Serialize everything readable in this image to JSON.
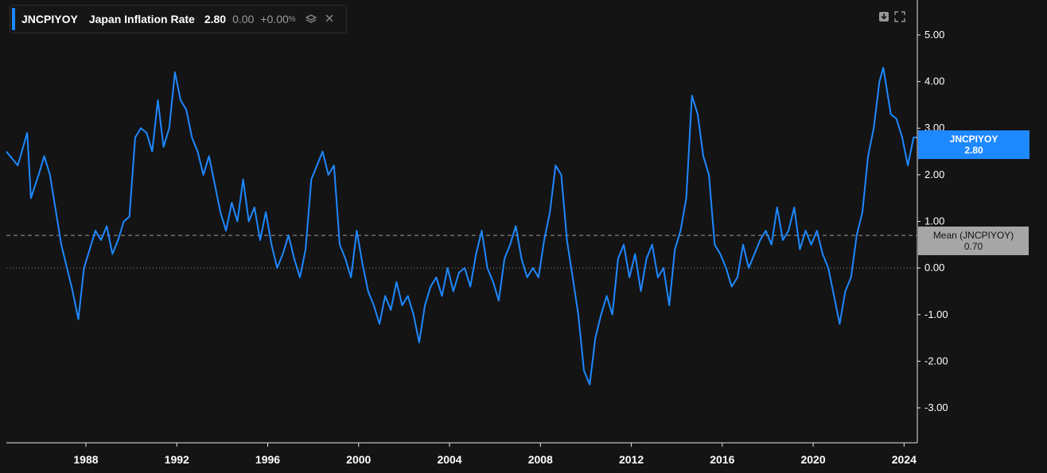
{
  "legend": {
    "ticker": "JNCPIYOY",
    "name": "Japan Inflation Rate",
    "last": "2.80",
    "change": "0.00",
    "change_pct": "+0.00",
    "pct_sign": "%",
    "layers_icon": "layers-icon",
    "close_icon": "close-icon"
  },
  "toolbar": {
    "download_icon": "download-icon",
    "fullscreen_icon": "fullscreen-icon"
  },
  "tags": {
    "last_label": "JNCPIYOY",
    "last_value": "2.80",
    "mean_label": "Mean (JNCPIYOY)",
    "mean_value": "0.70"
  },
  "colors": {
    "background": "#141414",
    "series": "#1e88ff",
    "mean_line": "#9a9a9a",
    "mean_tag": "#a6a6a6",
    "axis_text": "#ffffff"
  },
  "chart_data": {
    "type": "line",
    "x_axis": {
      "type": "date",
      "range": [
        "1984-07",
        "2024-08"
      ],
      "tick_labels": [
        "1988",
        "1992",
        "1996",
        "2000",
        "2004",
        "2008",
        "2012",
        "2016",
        "2020",
        "2024"
      ]
    },
    "y_axis": {
      "position": "right",
      "range": [
        -3.75,
        5.75
      ],
      "tick_labels": [
        "5.00",
        "4.00",
        "3.00",
        "2.00",
        "1.00",
        "0.00",
        "-1.00",
        "-2.00",
        "-3.00"
      ]
    },
    "grid": false,
    "reference_lines": [
      {
        "label": "Mean (JNCPIYOY)",
        "value": 0.7,
        "style": "dashed"
      },
      {
        "value": 0.0,
        "style": "dotted"
      }
    ],
    "series": [
      {
        "name": "JNCPIYOY",
        "points": [
          [
            "1984-07",
            2.5
          ],
          [
            "1985-01",
            2.2
          ],
          [
            "1985-06",
            2.9
          ],
          [
            "1985-08",
            1.5
          ],
          [
            "1985-12",
            2.0
          ],
          [
            "1986-03",
            2.4
          ],
          [
            "1986-06",
            2.0
          ],
          [
            "1986-10",
            1.0
          ],
          [
            "1986-12",
            0.5
          ],
          [
            "1987-03",
            0.0
          ],
          [
            "1987-06",
            -0.5
          ],
          [
            "1987-09",
            -1.1
          ],
          [
            "1987-12",
            0.0
          ],
          [
            "1988-03",
            0.4
          ],
          [
            "1988-06",
            0.8
          ],
          [
            "1988-09",
            0.6
          ],
          [
            "1988-12",
            0.9
          ],
          [
            "1989-03",
            0.3
          ],
          [
            "1989-06",
            0.6
          ],
          [
            "1989-09",
            1.0
          ],
          [
            "1989-12",
            1.1
          ],
          [
            "1990-03",
            2.8
          ],
          [
            "1990-06",
            3.0
          ],
          [
            "1990-09",
            2.9
          ],
          [
            "1990-12",
            2.5
          ],
          [
            "1991-03",
            3.6
          ],
          [
            "1991-06",
            2.6
          ],
          [
            "1991-09",
            3.0
          ],
          [
            "1991-12",
            4.2
          ],
          [
            "1992-03",
            3.6
          ],
          [
            "1992-06",
            3.4
          ],
          [
            "1992-09",
            2.8
          ],
          [
            "1992-12",
            2.5
          ],
          [
            "1993-03",
            2.0
          ],
          [
            "1993-06",
            2.4
          ],
          [
            "1993-09",
            1.8
          ],
          [
            "1993-12",
            1.2
          ],
          [
            "1994-03",
            0.8
          ],
          [
            "1994-06",
            1.4
          ],
          [
            "1994-09",
            1.0
          ],
          [
            "1994-12",
            1.9
          ],
          [
            "1995-03",
            1.0
          ],
          [
            "1995-06",
            1.3
          ],
          [
            "1995-09",
            0.6
          ],
          [
            "1995-12",
            1.2
          ],
          [
            "1996-03",
            0.5
          ],
          [
            "1996-06",
            0.0
          ],
          [
            "1996-09",
            0.3
          ],
          [
            "1996-12",
            0.7
          ],
          [
            "1997-03",
            0.2
          ],
          [
            "1997-06",
            -0.2
          ],
          [
            "1997-09",
            0.4
          ],
          [
            "1997-12",
            1.9
          ],
          [
            "1998-03",
            2.2
          ],
          [
            "1998-06",
            2.5
          ],
          [
            "1998-09",
            2.0
          ],
          [
            "1998-12",
            2.2
          ],
          [
            "1999-03",
            0.5
          ],
          [
            "1999-06",
            0.2
          ],
          [
            "1999-09",
            -0.2
          ],
          [
            "1999-12",
            0.8
          ],
          [
            "2000-03",
            0.1
          ],
          [
            "2000-06",
            -0.5
          ],
          [
            "2000-09",
            -0.8
          ],
          [
            "2000-12",
            -1.2
          ],
          [
            "2001-03",
            -0.6
          ],
          [
            "2001-06",
            -0.9
          ],
          [
            "2001-09",
            -0.3
          ],
          [
            "2001-12",
            -0.8
          ],
          [
            "2002-03",
            -0.6
          ],
          [
            "2002-06",
            -1.0
          ],
          [
            "2002-09",
            -1.6
          ],
          [
            "2002-12",
            -0.8
          ],
          [
            "2003-03",
            -0.4
          ],
          [
            "2003-06",
            -0.2
          ],
          [
            "2003-09",
            -0.6
          ],
          [
            "2003-12",
            0.0
          ],
          [
            "2004-03",
            -0.5
          ],
          [
            "2004-06",
            -0.1
          ],
          [
            "2004-09",
            0.0
          ],
          [
            "2004-12",
            -0.4
          ],
          [
            "2005-03",
            0.3
          ],
          [
            "2005-06",
            0.8
          ],
          [
            "2005-09",
            0.0
          ],
          [
            "2005-12",
            -0.3
          ],
          [
            "2006-03",
            -0.7
          ],
          [
            "2006-06",
            0.2
          ],
          [
            "2006-09",
            0.5
          ],
          [
            "2006-12",
            0.9
          ],
          [
            "2007-03",
            0.2
          ],
          [
            "2007-06",
            -0.2
          ],
          [
            "2007-09",
            0.0
          ],
          [
            "2007-12",
            -0.2
          ],
          [
            "2008-03",
            0.6
          ],
          [
            "2008-06",
            1.2
          ],
          [
            "2008-09",
            2.2
          ],
          [
            "2008-12",
            2.0
          ],
          [
            "2009-03",
            0.6
          ],
          [
            "2009-06",
            -0.2
          ],
          [
            "2009-09",
            -1.0
          ],
          [
            "2009-12",
            -2.2
          ],
          [
            "2010-03",
            -2.5
          ],
          [
            "2010-06",
            -1.5
          ],
          [
            "2010-09",
            -1.0
          ],
          [
            "2010-12",
            -0.6
          ],
          [
            "2011-03",
            -1.0
          ],
          [
            "2011-06",
            0.2
          ],
          [
            "2011-09",
            0.5
          ],
          [
            "2011-12",
            -0.2
          ],
          [
            "2012-03",
            0.3
          ],
          [
            "2012-06",
            -0.5
          ],
          [
            "2012-09",
            0.2
          ],
          [
            "2012-12",
            0.5
          ],
          [
            "2013-03",
            -0.2
          ],
          [
            "2013-06",
            0.0
          ],
          [
            "2013-09",
            -0.8
          ],
          [
            "2013-12",
            0.4
          ],
          [
            "2014-03",
            0.8
          ],
          [
            "2014-06",
            1.5
          ],
          [
            "2014-09",
            3.7
          ],
          [
            "2014-12",
            3.3
          ],
          [
            "2015-03",
            2.4
          ],
          [
            "2015-06",
            2.0
          ],
          [
            "2015-09",
            0.5
          ],
          [
            "2015-12",
            0.3
          ],
          [
            "2016-03",
            0.0
          ],
          [
            "2016-06",
            -0.4
          ],
          [
            "2016-09",
            -0.2
          ],
          [
            "2016-12",
            0.5
          ],
          [
            "2017-03",
            0.0
          ],
          [
            "2017-06",
            0.3
          ],
          [
            "2017-09",
            0.6
          ],
          [
            "2017-12",
            0.8
          ],
          [
            "2018-03",
            0.5
          ],
          [
            "2018-06",
            1.3
          ],
          [
            "2018-09",
            0.6
          ],
          [
            "2018-12",
            0.8
          ],
          [
            "2019-03",
            1.3
          ],
          [
            "2019-06",
            0.4
          ],
          [
            "2019-09",
            0.8
          ],
          [
            "2019-12",
            0.5
          ],
          [
            "2020-03",
            0.8
          ],
          [
            "2020-06",
            0.3
          ],
          [
            "2020-09",
            0.0
          ],
          [
            "2020-12",
            -0.6
          ],
          [
            "2021-03",
            -1.2
          ],
          [
            "2021-06",
            -0.5
          ],
          [
            "2021-09",
            -0.2
          ],
          [
            "2021-12",
            0.7
          ],
          [
            "2022-03",
            1.2
          ],
          [
            "2022-06",
            2.4
          ],
          [
            "2022-09",
            3.0
          ],
          [
            "2022-12",
            4.0
          ],
          [
            "2023-02",
            4.3
          ],
          [
            "2023-06",
            3.3
          ],
          [
            "2023-09",
            3.2
          ],
          [
            "2023-12",
            2.8
          ],
          [
            "2024-03",
            2.2
          ],
          [
            "2024-06",
            2.8
          ],
          [
            "2024-08",
            2.8
          ]
        ]
      }
    ]
  }
}
